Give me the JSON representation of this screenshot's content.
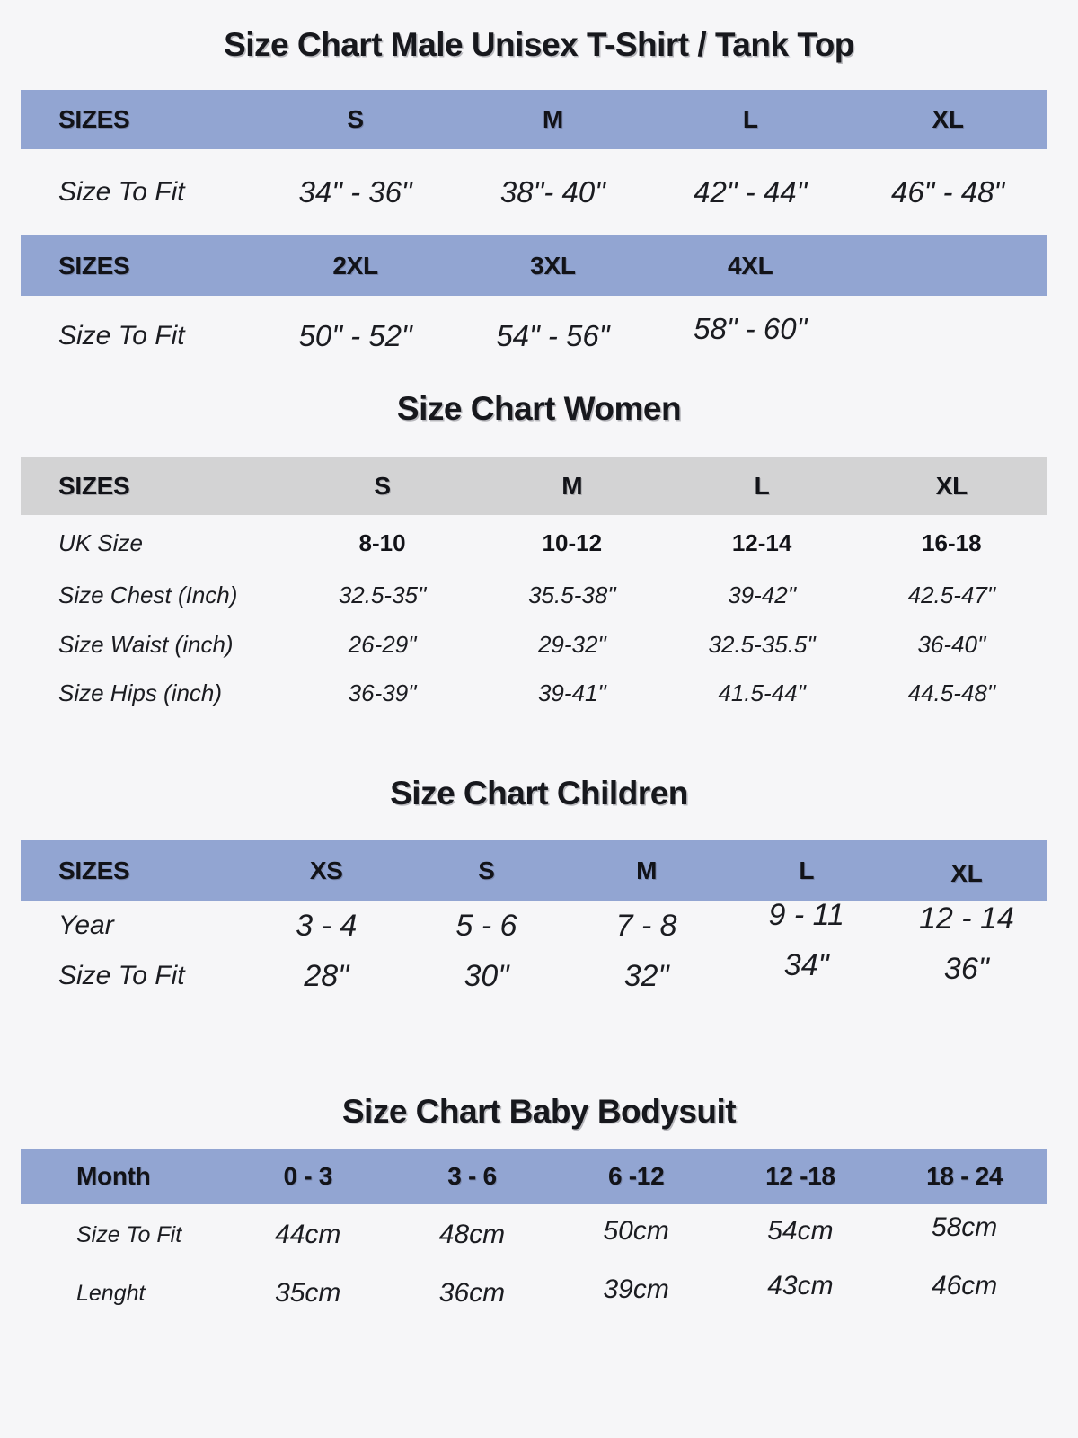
{
  "colors": {
    "background": "#f6f6f8",
    "header_blue": "#92a5d2",
    "header_gray": "#d3d3d4",
    "text": "#15161b"
  },
  "male": {
    "title": "Size Chart Male Unisex T-Shirt / Tank Top",
    "upper": {
      "headers": [
        "SIZES",
        "S",
        "M",
        "L",
        "XL"
      ],
      "row_label": "Size To Fit",
      "values": [
        "34\" - 36\"",
        "38\"- 40\"",
        "42\" - 44\"",
        "46\" - 48\""
      ]
    },
    "lower": {
      "headers": [
        "SIZES",
        "2XL",
        "3XL",
        "4XL"
      ],
      "row_label": "Size To Fit",
      "values": [
        "50\" - 52\"",
        "54\" - 56\"",
        "58\" - 60\""
      ]
    }
  },
  "women": {
    "title": "Size Chart Women",
    "headers": [
      "SIZES",
      "S",
      "M",
      "L",
      "XL"
    ],
    "rows": [
      {
        "label": "UK Size",
        "values": [
          "8-10",
          "10-12",
          "12-14",
          "16-18"
        ]
      },
      {
        "label": "Size Chest (Inch)",
        "values": [
          "32.5-35\"",
          "35.5-38\"",
          "39-42\"",
          "42.5-47\""
        ]
      },
      {
        "label": "Size Waist (inch)",
        "values": [
          "26-29\"",
          "29-32\"",
          "32.5-35.5\"",
          "36-40\""
        ]
      },
      {
        "label": "Size Hips (inch)",
        "values": [
          "36-39\"",
          "39-41\"",
          "41.5-44\"",
          "44.5-48\""
        ]
      }
    ]
  },
  "children": {
    "title": "Size Chart Children",
    "headers": [
      "SIZES",
      "XS",
      "S",
      "M",
      "L",
      "XL"
    ],
    "rows": [
      {
        "label": "Year",
        "values": [
          "3 - 4",
          "5 - 6",
          "7 - 8",
          "9 - 11",
          "12 - 14"
        ]
      },
      {
        "label": "Size To Fit",
        "values": [
          "28\"",
          "30\"",
          "32\"",
          "34\"",
          "36\""
        ]
      }
    ]
  },
  "baby": {
    "title": "Size Chart Baby Bodysuit",
    "headers": [
      "Month",
      "0 - 3",
      "3 - 6",
      "6 -12",
      "12 -18",
      "18 - 24"
    ],
    "rows": [
      {
        "label": "Size To Fit",
        "values": [
          "44cm",
          "48cm",
          "50cm",
          "54cm",
          "58cm"
        ]
      },
      {
        "label": "Lenght",
        "values": [
          "35cm",
          "36cm",
          "39cm",
          "43cm",
          "46cm"
        ]
      }
    ]
  }
}
